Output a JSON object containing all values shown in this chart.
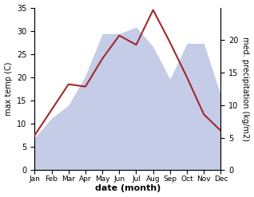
{
  "months": [
    "Jan",
    "Feb",
    "Mar",
    "Apr",
    "May",
    "Jun",
    "Jul",
    "Aug",
    "Sep",
    "Oct",
    "Nov",
    "Dec"
  ],
  "temperature": [
    7.5,
    13.0,
    18.5,
    18.0,
    24.0,
    29.0,
    27.0,
    34.5,
    27.5,
    20.0,
    12.0,
    8.5
  ],
  "precipitation": [
    5.0,
    8.0,
    10.0,
    14.5,
    21.0,
    21.0,
    22.0,
    19.0,
    14.0,
    19.5,
    19.5,
    11.5
  ],
  "temp_color": "#9e2a2b",
  "precip_fill_color": "#c5cce8",
  "temp_ylim": [
    0,
    35
  ],
  "precip_ylim": [
    0,
    25
  ],
  "temp_yticks": [
    0,
    5,
    10,
    15,
    20,
    25,
    30,
    35
  ],
  "precip_yticks": [
    0,
    5,
    10,
    15,
    20
  ],
  "xlabel": "date (month)",
  "ylabel_left": "max temp (C)",
  "ylabel_right": "med. precipitation (kg/m2)",
  "bg_color": "#ffffff"
}
